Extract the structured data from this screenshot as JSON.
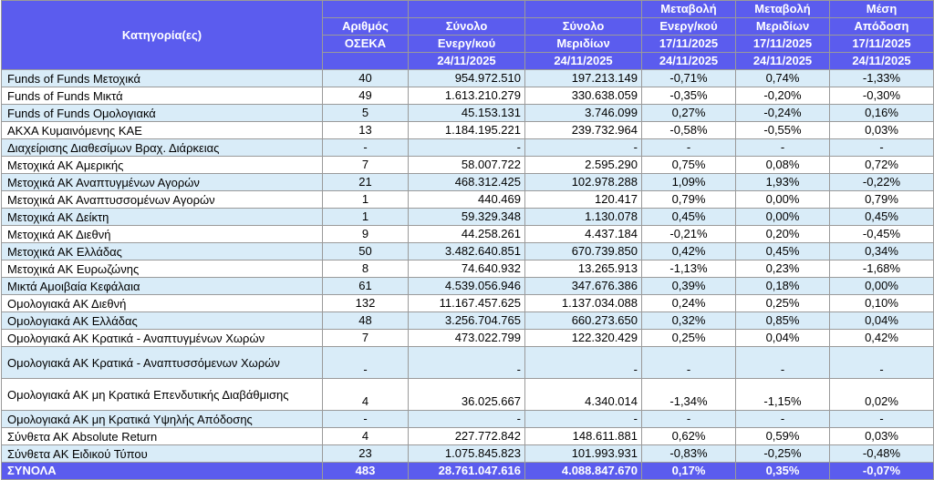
{
  "headers": {
    "category": "Κατηγορία(ες)",
    "col1": [
      "Αριθμός",
      "ΟΣΕΚΑ",
      ""
    ],
    "col2": [
      "Σύνολο",
      "Ενεργ/κού",
      "24/11/2025"
    ],
    "col3": [
      "Σύνολο",
      "Μεριδίων",
      "24/11/2025"
    ],
    "col4": [
      "Μεταβολή",
      "Ενεργ/κού",
      "17/11/2025",
      "24/11/2025"
    ],
    "col5": [
      "Μεταβολή",
      "Μεριδίων",
      "17/11/2025",
      "24/11/2025"
    ],
    "col6": [
      "Μέση",
      "Απόδοση",
      "17/11/2025",
      "24/11/2025"
    ]
  },
  "rows": [
    {
      "name": "Funds of Funds Μετοχικά",
      "count": "40",
      "assets": "954.972.510",
      "units": "197.213.149",
      "chg_assets": "-0,71%",
      "chg_units": "0,74%",
      "ret": "-1,33%"
    },
    {
      "name": "Funds of Funds Μικτά",
      "count": "49",
      "assets": "1.613.210.279",
      "units": "330.638.059",
      "chg_assets": "-0,35%",
      "chg_units": "-0,20%",
      "ret": "-0,30%"
    },
    {
      "name": "Funds of Funds Ομολογιακά",
      "count": "5",
      "assets": "45.153.131",
      "units": "3.746.099",
      "chg_assets": "0,27%",
      "chg_units": "-0,24%",
      "ret": "0,16%"
    },
    {
      "name": "ΑΚΧΑ Κυμαινόμενης ΚΑΕ",
      "count": "13",
      "assets": "1.184.195.221",
      "units": "239.732.964",
      "chg_assets": "-0,58%",
      "chg_units": "-0,55%",
      "ret": "0,03%"
    },
    {
      "name": "Διαχείρισης Διαθεσίμων Βραχ. Διάρκειας",
      "count": "-",
      "assets": "-",
      "units": "-",
      "chg_assets": "-",
      "chg_units": "-",
      "ret": "-"
    },
    {
      "name": "Μετοχικά ΑΚ Αμερικής",
      "count": "7",
      "assets": "58.007.722",
      "units": "2.595.290",
      "chg_assets": "0,75%",
      "chg_units": "0,08%",
      "ret": "0,72%"
    },
    {
      "name": "Μετοχικά ΑΚ Αναπτυγμένων Αγορών",
      "count": "21",
      "assets": "468.312.425",
      "units": "102.978.288",
      "chg_assets": "1,09%",
      "chg_units": "1,93%",
      "ret": "-0,22%"
    },
    {
      "name": "Μετοχικά ΑΚ Αναπτυσσομένων Αγορών",
      "count": "1",
      "assets": "440.469",
      "units": "120.417",
      "chg_assets": "0,79%",
      "chg_units": "0,00%",
      "ret": "0,79%"
    },
    {
      "name": "Μετοχικά ΑΚ Δείκτη",
      "count": "1",
      "assets": "59.329.348",
      "units": "1.130.078",
      "chg_assets": "0,45%",
      "chg_units": "0,00%",
      "ret": "0,45%"
    },
    {
      "name": "Μετοχικά ΑΚ Διεθνή",
      "count": "9",
      "assets": "44.258.261",
      "units": "4.437.184",
      "chg_assets": "-0,21%",
      "chg_units": "0,20%",
      "ret": "-0,45%"
    },
    {
      "name": "Μετοχικά ΑΚ Ελλάδας",
      "count": "50",
      "assets": "3.482.640.851",
      "units": "670.739.850",
      "chg_assets": "0,42%",
      "chg_units": "0,45%",
      "ret": "0,34%"
    },
    {
      "name": "Μετοχικά ΑΚ Ευρωζώνης",
      "count": "8",
      "assets": "74.640.932",
      "units": "13.265.913",
      "chg_assets": "-1,13%",
      "chg_units": "0,23%",
      "ret": "-1,68%"
    },
    {
      "name": "Μικτά Αμοιβαία Κεφάλαια",
      "count": "61",
      "assets": "4.539.056.946",
      "units": "347.676.386",
      "chg_assets": "0,39%",
      "chg_units": "0,18%",
      "ret": "0,00%"
    },
    {
      "name": "Ομολογιακά ΑΚ Διεθνή",
      "count": "132",
      "assets": "11.167.457.625",
      "units": "1.137.034.088",
      "chg_assets": "0,24%",
      "chg_units": "0,25%",
      "ret": "0,10%"
    },
    {
      "name": "Ομολογιακά ΑΚ Ελλάδας",
      "count": "48",
      "assets": "3.256.704.765",
      "units": "660.273.650",
      "chg_assets": "0,32%",
      "chg_units": "0,85%",
      "ret": "0,04%"
    },
    {
      "name": "Ομολογιακά ΑΚ Κρατικά - Αναπτυγμένων Χωρών",
      "count": "7",
      "assets": "473.022.799",
      "units": "122.320.429",
      "chg_assets": "0,25%",
      "chg_units": "0,04%",
      "ret": "0,42%"
    },
    {
      "name": "Ομολογιακά ΑΚ Κρατικά - Αναπτυσσόμενων Χωρών",
      "count": "-",
      "assets": "-",
      "units": "-",
      "chg_assets": "-",
      "chg_units": "-",
      "ret": "-",
      "wrap": true
    },
    {
      "name": "Ομολογιακά ΑΚ μη Κρατικά Επενδυτικής Διαβάθμισης",
      "count": "4",
      "assets": "36.025.667",
      "units": "4.340.014",
      "chg_assets": "-1,34%",
      "chg_units": "-1,15%",
      "ret": "0,02%",
      "wrap": true
    },
    {
      "name": "Ομολογιακά ΑΚ μη Κρατικά Υψηλής Απόδοσης",
      "count": "-",
      "assets": "-",
      "units": "-",
      "chg_assets": "-",
      "chg_units": "-",
      "ret": "-"
    },
    {
      "name": "Σύνθετα ΑΚ Absolute Return",
      "count": "4",
      "assets": "227.772.842",
      "units": "148.611.881",
      "chg_assets": "0,62%",
      "chg_units": "0,59%",
      "ret": "0,03%"
    },
    {
      "name": "Σύνθετα ΑΚ Ειδικού Τύπου",
      "count": "23",
      "assets": "1.075.845.823",
      "units": "101.993.931",
      "chg_assets": "-0,83%",
      "chg_units": "-0,25%",
      "ret": "-0,48%"
    }
  ],
  "totals": {
    "name": "ΣΥΝΟΛΑ",
    "count": "483",
    "assets": "28.761.047.616",
    "units": "4.088.847.670",
    "chg_assets": "0,17%",
    "chg_units": "0,35%",
    "ret": "-0,07%"
  },
  "colors": {
    "header_bg": "#5b5cee",
    "alt_row_bg": "#d9ecf8",
    "border": "#9a9a9a"
  }
}
